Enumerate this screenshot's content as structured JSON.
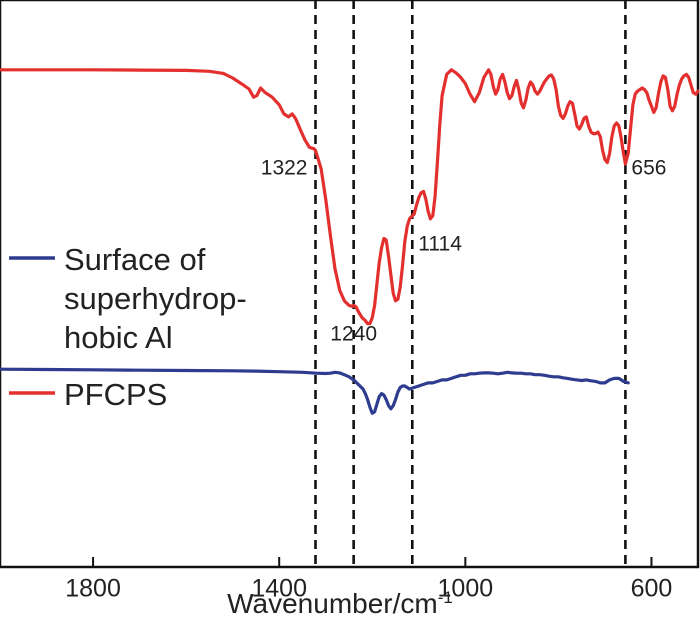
{
  "chart_data": {
    "type": "line",
    "title": "",
    "xlabel": "Wavenumber/cm",
    "xlabel_sup": "-1",
    "ylabel": "",
    "xlim": [
      2000,
      500
    ],
    "ylim": [
      0,
      100
    ],
    "x_reversed": true,
    "x_ticks": [
      1800,
      1400,
      1000,
      600
    ],
    "y_ticks_shown": false,
    "legend_position": "left-middle",
    "series": [
      {
        "name": "PFCPS",
        "legend_label": "PFCPS",
        "color": "#e3302f",
        "x": [
          2000,
          1900,
          1800,
          1700,
          1600,
          1550,
          1520,
          1500,
          1480,
          1465,
          1455,
          1448,
          1440,
          1430,
          1415,
          1400,
          1390,
          1380,
          1372,
          1365,
          1355,
          1345,
          1335,
          1325,
          1322,
          1310,
          1300,
          1290,
          1280,
          1270,
          1260,
          1250,
          1243,
          1240,
          1235,
          1230,
          1222,
          1215,
          1210,
          1205,
          1200,
          1195,
          1190,
          1185,
          1180,
          1175,
          1170,
          1165,
          1160,
          1155,
          1150,
          1145,
          1140,
          1135,
          1130,
          1125,
          1120,
          1114,
          1110,
          1105,
          1100,
          1095,
          1090,
          1085,
          1080,
          1075,
          1070,
          1065,
          1060,
          1055,
          1050,
          1040,
          1030,
          1020,
          1010,
          1000,
          990,
          980,
          970,
          960,
          950,
          945,
          940,
          935,
          930,
          925,
          920,
          915,
          910,
          905,
          900,
          895,
          890,
          885,
          880,
          875,
          870,
          865,
          860,
          855,
          850,
          845,
          840,
          835,
          830,
          825,
          820,
          815,
          810,
          805,
          800,
          795,
          790,
          785,
          780,
          775,
          770,
          765,
          760,
          755,
          750,
          745,
          740,
          735,
          730,
          725,
          720,
          715,
          710,
          705,
          700,
          695,
          690,
          685,
          680,
          675,
          670,
          665,
          660,
          656,
          650,
          645,
          640,
          635,
          630,
          625,
          620,
          615,
          610,
          605,
          600,
          595,
          590,
          585,
          580,
          575,
          570,
          565,
          560,
          555,
          550,
          545,
          540,
          535,
          530,
          525,
          520,
          515,
          510,
          505,
          500
        ],
        "y": [
          92.5,
          92.5,
          92.5,
          92.4,
          92.3,
          92.0,
          91.3,
          89.8,
          87.8,
          86.2,
          83.5,
          84.0,
          86.5,
          85.0,
          83.5,
          81.0,
          78.0,
          77.0,
          78.0,
          76.5,
          73.0,
          69.5,
          67.0,
          66.5,
          66.0,
          60.0,
          50.0,
          38.0,
          27.0,
          20.0,
          16.5,
          15.0,
          14.7,
          15.0,
          14.5,
          13.0,
          11.0,
          10.0,
          9.0,
          9.0,
          11.0,
          15.0,
          22.0,
          29.0,
          34.0,
          37.0,
          36.5,
          31.0,
          25.0,
          19.0,
          16.5,
          17.0,
          21.0,
          28.0,
          36.0,
          41.0,
          43.5,
          44.5,
          45.0,
          48.0,
          50.5,
          52.0,
          52.5,
          50.0,
          46.0,
          43.5,
          44.5,
          51.0,
          62.0,
          74.0,
          84.0,
          91.0,
          92.5,
          91.5,
          90.0,
          88.0,
          84.5,
          82.0,
          85.0,
          90.0,
          92.5,
          91.0,
          87.0,
          84.5,
          86.0,
          89.5,
          91.0,
          88.5,
          85.0,
          83.0,
          84.0,
          87.0,
          89.0,
          86.0,
          81.5,
          80.0,
          82.5,
          86.5,
          88.5,
          87.5,
          85.5,
          84.5,
          85.5,
          87.0,
          88.5,
          89.5,
          90.5,
          90.8,
          89.5,
          86.0,
          80.5,
          77.5,
          76.5,
          78.0,
          80.5,
          82.0,
          81.5,
          78.0,
          74.0,
          73.0,
          74.5,
          76.5,
          77.0,
          74.0,
          72.0,
          71.5,
          71.5,
          72.0,
          70.5,
          66.0,
          63.0,
          62.0,
          65.0,
          70.5,
          74.0,
          75.0,
          74.0,
          70.0,
          65.0,
          61.5,
          65.0,
          73.0,
          81.0,
          84.5,
          85.5,
          86.0,
          86.5,
          86.0,
          85.0,
          82.5,
          80.5,
          78.5,
          80.0,
          84.5,
          88.5,
          90.5,
          90.0,
          86.0,
          80.5,
          79.0,
          80.5,
          84.5,
          87.5,
          89.5,
          90.5,
          91.0,
          90.0,
          87.5,
          85.0,
          84.5,
          85.5
        ]
      },
      {
        "name": "Surface of superhydrophobic Al",
        "legend_label_lines": [
          "Surface of",
          "superhydrop-",
          "hobic Al"
        ],
        "color": "#2e3c8f",
        "x": [
          2000,
          1900,
          1800,
          1700,
          1600,
          1500,
          1450,
          1400,
          1350,
          1320,
          1300,
          1290,
          1280,
          1270,
          1260,
          1250,
          1240,
          1230,
          1220,
          1215,
          1210,
          1205,
          1200,
          1195,
          1190,
          1185,
          1180,
          1175,
          1170,
          1165,
          1160,
          1155,
          1150,
          1145,
          1140,
          1135,
          1130,
          1125,
          1120,
          1110,
          1100,
          1090,
          1080,
          1070,
          1060,
          1050,
          1040,
          1030,
          1020,
          1010,
          1000,
          990,
          980,
          970,
          960,
          950,
          940,
          930,
          920,
          910,
          900,
          890,
          880,
          870,
          860,
          850,
          840,
          830,
          820,
          810,
          800,
          790,
          780,
          770,
          760,
          750,
          740,
          730,
          720,
          710,
          700,
          690,
          680,
          670,
          660,
          650
        ],
        "y": [
          -6.0,
          -6.1,
          -6.2,
          -6.3,
          -6.4,
          -6.5,
          -6.6,
          -6.8,
          -7.0,
          -7.3,
          -7.4,
          -7.3,
          -7.0,
          -7.2,
          -7.8,
          -8.5,
          -9.5,
          -11.0,
          -12.5,
          -14.0,
          -16.0,
          -18.5,
          -20.5,
          -20.0,
          -17.5,
          -15.0,
          -14.0,
          -14.5,
          -16.0,
          -18.0,
          -19.0,
          -18.0,
          -16.0,
          -13.5,
          -12.0,
          -11.5,
          -11.5,
          -12.0,
          -12.5,
          -12.0,
          -11.5,
          -11.0,
          -10.5,
          -10.5,
          -10.0,
          -9.5,
          -9.5,
          -9.0,
          -8.5,
          -8.0,
          -8.0,
          -7.5,
          -7.5,
          -7.3,
          -7.2,
          -7.2,
          -7.3,
          -7.5,
          -7.3,
          -7.0,
          -7.2,
          -7.3,
          -7.3,
          -7.5,
          -7.5,
          -7.8,
          -7.8,
          -8.0,
          -8.3,
          -8.5,
          -8.5,
          -8.8,
          -9.0,
          -9.3,
          -9.5,
          -9.7,
          -9.5,
          -9.8,
          -10.0,
          -10.5,
          -10.5,
          -9.5,
          -9.0,
          -9.0,
          -10.0,
          -10.5
        ]
      }
    ],
    "vlines": [
      1322,
      1240,
      1114,
      656
    ],
    "annotations": [
      {
        "text": "1322",
        "x": 1322,
        "y": 58,
        "anchor": "end"
      },
      {
        "text": "1240",
        "x": 1240,
        "y": 3.5,
        "anchor": "middle"
      },
      {
        "text": "1114",
        "x": 1114,
        "y": 33,
        "anchor": "start"
      },
      {
        "text": "656",
        "x": 656,
        "y": 58,
        "anchor": "start"
      }
    ]
  }
}
